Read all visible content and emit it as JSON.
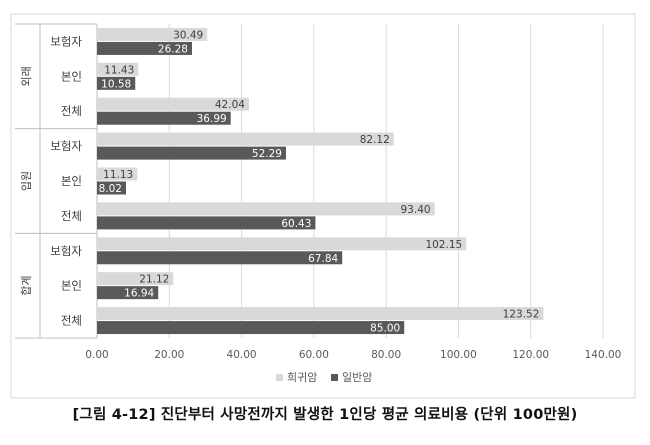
{
  "caption": "[그림 4-12] 진단부터 사망전까지 발생한 1인당 평균 의료비용 (단위 100만원)",
  "chart_data": {
    "type": "bar",
    "orientation": "horizontal",
    "groups": [
      {
        "name": "외래",
        "categories": [
          "보험자",
          "본인",
          "전체"
        ]
      },
      {
        "name": "입원",
        "categories": [
          "보험자",
          "본인",
          "전체"
        ]
      },
      {
        "name": "합계",
        "categories": [
          "보험자",
          "본인",
          "전체"
        ]
      }
    ],
    "series": [
      {
        "name": "희귀암",
        "color": "#d9d9d9",
        "values": [
          30.49,
          11.43,
          42.04,
          82.12,
          11.13,
          93.4,
          102.15,
          21.12,
          123.52
        ],
        "labels": [
          "30.49",
          "11.43",
          "42.04",
          "82.12",
          "11.13",
          "93.40",
          "102.15",
          "21.12",
          "123.52"
        ]
      },
      {
        "name": "일반암",
        "color": "#595959",
        "values": [
          26.28,
          10.58,
          36.99,
          52.29,
          8.02,
          60.43,
          67.84,
          16.94,
          85.0
        ],
        "labels": [
          "26.28",
          "10.58",
          "36.99",
          "52.29",
          "8.02",
          "60.43",
          "67.84",
          "16.94",
          "85.00"
        ]
      }
    ],
    "xlim": [
      0,
      140
    ],
    "xticks": [
      "0.00",
      "20.00",
      "40.00",
      "60.00",
      "80.00",
      "100.00",
      "120.00",
      "140.00"
    ],
    "grid": true,
    "legend_position": "bottom"
  }
}
